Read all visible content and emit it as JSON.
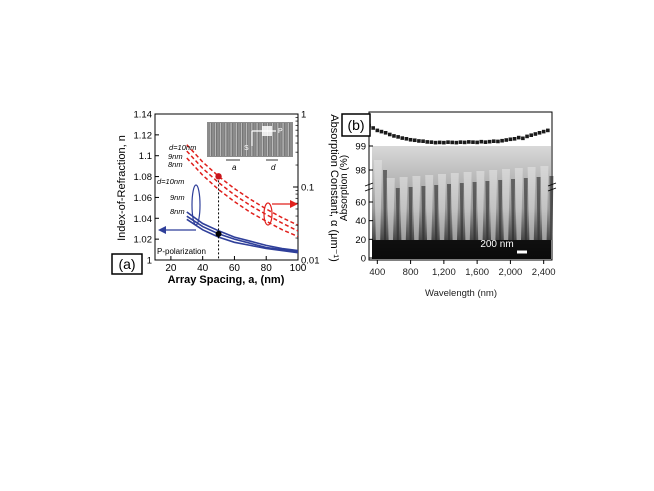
{
  "chart_data": [
    {
      "panel_label": "(a)",
      "type": "line",
      "xlabel": "Array Spacing, a, (nm)",
      "ylabel_left": "Index-of-Refraction, n",
      "ylabel_right": "Absorption Constant, α (μm⁻¹)",
      "xlim": [
        10,
        100
      ],
      "ylim_left": [
        1.0,
        1.14
      ],
      "ylim_right": [
        0.01,
        1
      ],
      "right_axis_scale": "log",
      "x_ticks": [
        "20",
        "40",
        "60",
        "80",
        "100"
      ],
      "y_left_ticks": [
        "1",
        "1.02",
        "1.04",
        "1.06",
        "1.08",
        "1.1",
        "1.12",
        "1.14"
      ],
      "y_right_ticks": [
        "0.01",
        "0.1",
        "1"
      ],
      "polarization_label": "P-polarization",
      "index_series": [
        {
          "name": "d=10nm",
          "x": [
            30,
            40,
            50,
            60,
            70,
            80,
            90,
            100
          ],
          "y": [
            1.046,
            1.035,
            1.028,
            1.022,
            1.018,
            1.014,
            1.011,
            1.009
          ]
        },
        {
          "name": "9nm",
          "x": [
            30,
            40,
            50,
            60,
            70,
            80,
            90,
            100
          ],
          "y": [
            1.042,
            1.032,
            1.025,
            1.02,
            1.016,
            1.012,
            1.01,
            1.008
          ]
        },
        {
          "name": "8nm",
          "x": [
            30,
            40,
            50,
            60,
            70,
            80,
            90,
            100
          ],
          "y": [
            1.039,
            1.029,
            1.022,
            1.017,
            1.014,
            1.011,
            1.009,
            1.007
          ]
        }
      ],
      "absorption_series": [
        {
          "name": "d=10nm",
          "x": [
            30,
            40,
            50,
            60,
            70,
            80,
            90,
            100
          ],
          "y": [
            0.38,
            0.22,
            0.14,
            0.095,
            0.068,
            0.05,
            0.038,
            0.03
          ]
        },
        {
          "name": "9nm",
          "x": [
            30,
            40,
            50,
            60,
            70,
            80,
            90,
            100
          ],
          "y": [
            0.31,
            0.18,
            0.115,
            0.078,
            0.056,
            0.042,
            0.032,
            0.025
          ]
        },
        {
          "name": "8nm",
          "x": [
            30,
            40,
            50,
            60,
            70,
            80,
            90,
            100
          ],
          "y": [
            0.25,
            0.145,
            0.092,
            0.063,
            0.045,
            0.034,
            0.026,
            0.021
          ]
        }
      ],
      "marker_x": 50,
      "marker_n": 1.025,
      "marker_alpha": 0.14,
      "inset_labels": {
        "P": "P",
        "S": "S",
        "a": "a",
        "d": "d"
      },
      "colors": {
        "index": "#2f3f9a",
        "absorption": "#e0201c",
        "axis": "#000000"
      }
    },
    {
      "panel_label": "(b)",
      "type": "scatter",
      "xlabel": "Wavelength (nm)",
      "ylabel": "Absorption (%)",
      "xlim": [
        300,
        2500
      ],
      "x_ticks": [
        "400",
        "800",
        "1,200",
        "1,600",
        "2,000",
        "2,400"
      ],
      "y_ticks_upper": [
        "99",
        "98"
      ],
      "y_ticks_lower": [
        "60",
        "40",
        "20",
        "0"
      ],
      "scale_bar_label": "200 nm",
      "x": [
        300,
        350,
        400,
        450,
        500,
        550,
        600,
        650,
        700,
        750,
        800,
        850,
        900,
        950,
        1000,
        1050,
        1100,
        1150,
        1200,
        1250,
        1300,
        1350,
        1400,
        1450,
        1500,
        1550,
        1600,
        1650,
        1700,
        1750,
        1800,
        1850,
        1900,
        1950,
        2000,
        2050,
        2100,
        2150,
        2200,
        2250,
        2300,
        2350,
        2400,
        2450
      ],
      "y": [
        99.85,
        99.75,
        99.65,
        99.6,
        99.55,
        99.48,
        99.42,
        99.38,
        99.33,
        99.3,
        99.26,
        99.24,
        99.21,
        99.2,
        99.17,
        99.16,
        99.14,
        99.15,
        99.14,
        99.16,
        99.15,
        99.14,
        99.16,
        99.15,
        99.17,
        99.16,
        99.15,
        99.18,
        99.16,
        99.18,
        99.2,
        99.19,
        99.22,
        99.25,
        99.28,
        99.3,
        99.35,
        99.32,
        99.4,
        99.45,
        99.5,
        99.55,
        99.6,
        99.65
      ],
      "colors": {
        "markers": "#1a1a1a"
      }
    }
  ]
}
